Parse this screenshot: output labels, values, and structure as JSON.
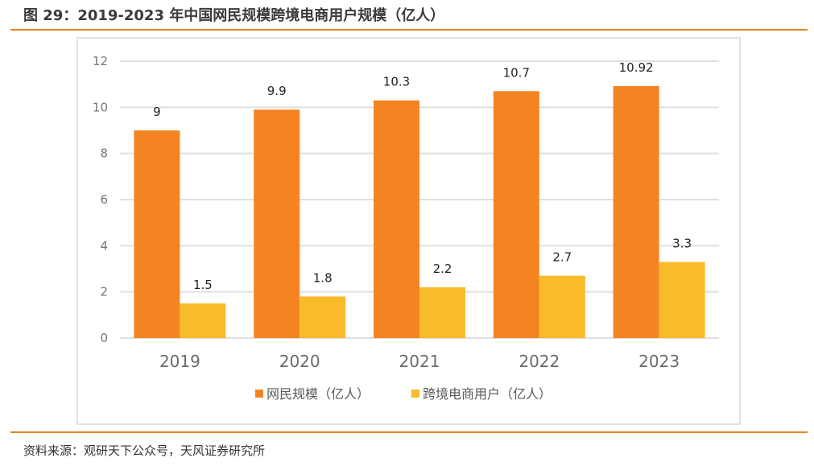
{
  "figure": {
    "title": "图 29：2019-2023 年中国网民规模跨境电商用户规模（亿人）",
    "source": "资料来源：观研天下公众号，天风证券研究所"
  },
  "colors": {
    "accent_rule": "#E8842A",
    "series_internet_users": "#F48422",
    "series_crossborder_users": "#F9BB2B",
    "gridline": "#e0e0e0"
  },
  "chart_data": {
    "type": "bar",
    "title": "2019-2023 年中国网民规模跨境电商用户规模（亿人）",
    "xlabel": "",
    "ylabel": "",
    "categories": [
      "2019",
      "2020",
      "2021",
      "2022",
      "2023"
    ],
    "series": [
      {
        "name": "网民规模（亿人）",
        "values": [
          9,
          9.9,
          10.3,
          10.7,
          10.92
        ],
        "data_labels": [
          "9",
          "9.9",
          "10.3",
          "10.7",
          "10.92"
        ]
      },
      {
        "name": "跨境电商用户（亿人）",
        "values": [
          1.5,
          1.8,
          2.2,
          2.7,
          3.3
        ],
        "data_labels": [
          "1.5",
          "1.8",
          "2.2",
          "2.7",
          "3.3"
        ]
      }
    ],
    "ylim": [
      0,
      12
    ],
    "yticks": [
      0,
      2,
      4,
      6,
      8,
      10,
      12
    ],
    "ytick_labels": [
      "0",
      "2",
      "4",
      "6",
      "8",
      "10",
      "12"
    ],
    "grid": true,
    "legend_position": "bottom-center"
  }
}
